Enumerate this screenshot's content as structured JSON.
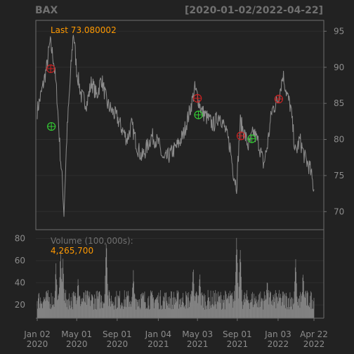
{
  "chart_data": {
    "type": "line",
    "symbol": "BAX",
    "date_range": "[2020-01-02/2022-04-22]",
    "last_label": "Last 73.080002",
    "theme": {
      "background": "#222222",
      "line": "#8c8c8c",
      "axis_text": "#8c8c8c",
      "accent": "#ff9900",
      "marker_up": "#33cc33",
      "marker_down": "#cc2222",
      "volume_bar": "#8c8c8c"
    },
    "price_axis": {
      "ylim": [
        67.5,
        96.5
      ],
      "ticks": [
        70,
        75,
        80,
        85,
        90,
        95
      ]
    },
    "x_ticks": [
      {
        "date": "2020-01-02",
        "l1": "Jan 02",
        "l2": "2020"
      },
      {
        "date": "2020-05-01",
        "l1": "May 01",
        "l2": "2020"
      },
      {
        "date": "2020-09-01",
        "l1": "Sep 01",
        "l2": "2020"
      },
      {
        "date": "2021-01-04",
        "l1": "Jan 04",
        "l2": "2021"
      },
      {
        "date": "2021-05-03",
        "l1": "May 03",
        "l2": "2021"
      },
      {
        "date": "2021-09-01",
        "l1": "Sep 01",
        "l2": "2021"
      },
      {
        "date": "2022-01-03",
        "l1": "Jan 03",
        "l2": "2022"
      },
      {
        "date": "2022-04-22",
        "l1": "Apr 22",
        "l2": "2022"
      }
    ],
    "price_series": [
      [
        "2020-01-02",
        84.0
      ],
      [
        "2020-01-15",
        86.5
      ],
      [
        "2020-01-31",
        90.0
      ],
      [
        "2020-02-10",
        93.5
      ],
      [
        "2020-02-21",
        91.0
      ],
      [
        "2020-03-02",
        86.0
      ],
      [
        "2020-03-12",
        78.0
      ],
      [
        "2020-03-20",
        73.0
      ],
      [
        "2020-03-23",
        69.5
      ],
      [
        "2020-04-01",
        80.5
      ],
      [
        "2020-04-15",
        91.0
      ],
      [
        "2020-04-21",
        95.0
      ],
      [
        "2020-05-01",
        89.5
      ],
      [
        "2020-05-15",
        86.0
      ],
      [
        "2020-06-01",
        85.0
      ],
      [
        "2020-06-15",
        88.0
      ],
      [
        "2020-07-01",
        86.0
      ],
      [
        "2020-07-15",
        88.5
      ],
      [
        "2020-08-01",
        85.0
      ],
      [
        "2020-08-15",
        84.0
      ],
      [
        "2020-09-01",
        83.0
      ],
      [
        "2020-09-15",
        81.5
      ],
      [
        "2020-10-01",
        80.0
      ],
      [
        "2020-10-15",
        82.0
      ],
      [
        "2020-11-01",
        79.0
      ],
      [
        "2020-11-15",
        77.5
      ],
      [
        "2020-12-01",
        79.0
      ],
      [
        "2020-12-15",
        80.5
      ],
      [
        "2021-01-04",
        79.5
      ],
      [
        "2021-01-20",
        77.0
      ],
      [
        "2021-02-10",
        78.0
      ],
      [
        "2021-03-01",
        79.0
      ],
      [
        "2021-03-20",
        80.5
      ],
      [
        "2021-04-10",
        84.0
      ],
      [
        "2021-04-25",
        87.0
      ],
      [
        "2021-05-03",
        86.0
      ],
      [
        "2021-05-15",
        84.0
      ],
      [
        "2021-06-01",
        83.0
      ],
      [
        "2021-06-20",
        82.0
      ],
      [
        "2021-07-10",
        83.5
      ],
      [
        "2021-07-25",
        81.5
      ],
      [
        "2021-08-10",
        79.0
      ],
      [
        "2021-08-20",
        75.5
      ],
      [
        "2021-08-30",
        73.5
      ],
      [
        "2021-09-10",
        82.5
      ],
      [
        "2021-09-25",
        80.5
      ],
      [
        "2021-10-05",
        79.0
      ],
      [
        "2021-10-20",
        81.0
      ],
      [
        "2021-11-05",
        79.5
      ],
      [
        "2021-11-20",
        76.5
      ],
      [
        "2021-12-01",
        79.0
      ],
      [
        "2021-12-15",
        84.0
      ],
      [
        "2022-01-03",
        85.5
      ],
      [
        "2022-01-18",
        89.0
      ],
      [
        "2022-01-31",
        86.0
      ],
      [
        "2022-02-10",
        84.5
      ],
      [
        "2022-02-25",
        78.0
      ],
      [
        "2022-03-10",
        80.0
      ],
      [
        "2022-03-25",
        77.5
      ],
      [
        "2022-04-10",
        76.0
      ],
      [
        "2022-04-22",
        73.08
      ]
    ],
    "markers": [
      {
        "date": "2020-02-12",
        "price": 89.8,
        "kind": "down"
      },
      {
        "date": "2020-02-14",
        "price": 81.8,
        "kind": "up"
      },
      {
        "date": "2021-05-03",
        "price": 85.7,
        "kind": "down"
      },
      {
        "date": "2021-05-06",
        "price": 83.4,
        "kind": "up"
      },
      {
        "date": "2021-09-12",
        "price": 80.5,
        "kind": "down"
      },
      {
        "date": "2021-10-15",
        "price": 80.1,
        "kind": "up"
      },
      {
        "date": "2022-01-05",
        "price": 85.6,
        "kind": "down"
      }
    ],
    "volume": {
      "label": "Volume (100,000s):",
      "last_value": "4,265,700",
      "ylim": [
        8,
        88
      ],
      "ticks": [
        20,
        40,
        60,
        80
      ],
      "baseline": 22,
      "spikes": [
        [
          "2020-02-28",
          55
        ],
        [
          "2020-03-13",
          70
        ],
        [
          "2020-03-20",
          62
        ],
        [
          "2020-05-05",
          45
        ],
        [
          "2020-07-30",
          80
        ],
        [
          "2020-10-20",
          50
        ],
        [
          "2021-04-20",
          55
        ],
        [
          "2021-05-10",
          50
        ],
        [
          "2021-08-30",
          85
        ],
        [
          "2021-09-10",
          70
        ],
        [
          "2021-12-01",
          45
        ],
        [
          "2022-02-25",
          62
        ],
        [
          "2022-03-20",
          50
        ]
      ]
    }
  }
}
